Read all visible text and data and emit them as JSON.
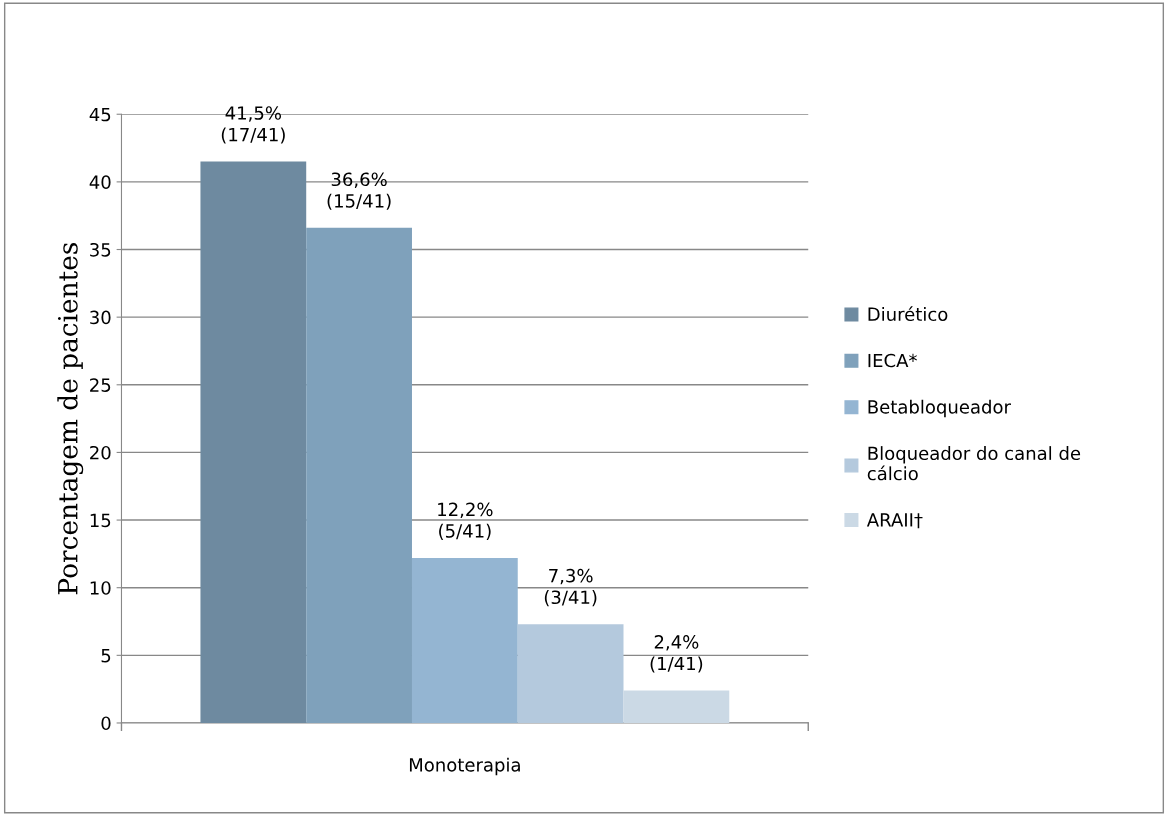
{
  "chart_data": {
    "type": "bar",
    "ylabel": "Porcentagem de pacientes",
    "categories": [
      "Monoterapia"
    ],
    "series": [
      {
        "name": "Diurético",
        "color": "#6e8aa0",
        "values": [
          41.5
        ],
        "value_labels": [
          "41,5%\n(17/41)"
        ]
      },
      {
        "name": "IECA*",
        "color": "#7fa1bb",
        "values": [
          36.6
        ],
        "value_labels": [
          "36,6%\n(15/41)"
        ]
      },
      {
        "name": "Betabloqueador",
        "color": "#94b5d2",
        "values": [
          12.2
        ],
        "value_labels": [
          "12,2%\n(5/41)"
        ]
      },
      {
        "name": "Bloqueador do canal de\ncálcio",
        "color": "#b4c9dd",
        "values": [
          7.3
        ],
        "value_labels": [
          "7,3%\n(3/41)"
        ]
      },
      {
        "name": "ARAII†",
        "color": "#cbd9e5",
        "values": [
          2.4
        ],
        "value_labels": [
          "2,4%\n(1/41)"
        ]
      }
    ],
    "ylim": [
      0,
      45
    ],
    "yticks": [
      0,
      5,
      10,
      15,
      20,
      25,
      30,
      35,
      40,
      45
    ],
    "grid": "y",
    "legend": "right"
  }
}
